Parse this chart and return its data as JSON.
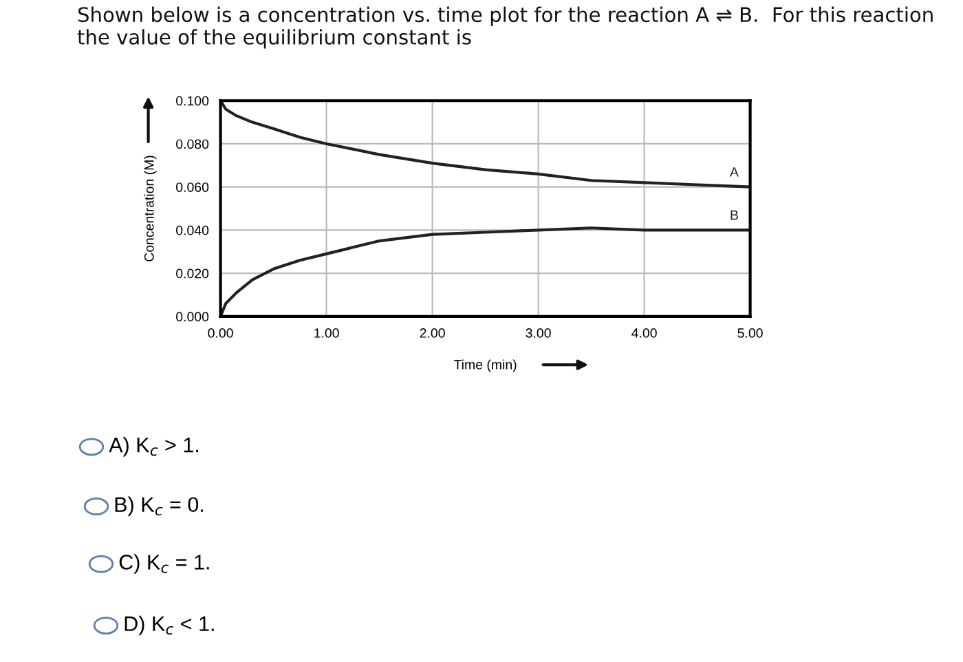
{
  "chart_data": {
    "type": "line",
    "title": "Shown below is a concentration vs. time plot for the reaction A ⇌ B.  For this reaction\nthe value of the equilibrium constant is",
    "xlabel": "Time (min)",
    "ylabel": "Concentration (M)",
    "series": [
      {
        "name": "A",
        "color": "#222222",
        "x": [
          0,
          0.05,
          0.15,
          0.3,
          0.5,
          0.75,
          1,
          1.5,
          2,
          2.5,
          3,
          3.5,
          4,
          4.5,
          5
        ],
        "values": [
          0.1,
          0.096,
          0.093,
          0.09,
          0.087,
          0.083,
          0.08,
          0.075,
          0.071,
          0.068,
          0.066,
          0.063,
          0.062,
          0.061,
          0.06
        ]
      },
      {
        "name": "B",
        "color": "#222222",
        "x": [
          0,
          0.05,
          0.15,
          0.3,
          0.5,
          0.75,
          1,
          1.5,
          2,
          2.5,
          3,
          3.5,
          4,
          4.5,
          5
        ],
        "values": [
          0,
          0.006,
          0.011,
          0.017,
          0.022,
          0.026,
          0.029,
          0.035,
          0.038,
          0.039,
          0.04,
          0.041,
          0.04,
          0.04,
          0.04
        ]
      }
    ],
    "xlim": [
      0,
      5
    ],
    "ylim": [
      0,
      0.1
    ],
    "xticks": [
      {
        "value": 0,
        "label": "0.00"
      },
      {
        "value": 1,
        "label": "1.00"
      },
      {
        "value": 2,
        "label": "2.00"
      },
      {
        "value": 3,
        "label": "3.00"
      },
      {
        "value": 4,
        "label": "4.00"
      },
      {
        "value": 5,
        "label": "5.00"
      }
    ],
    "yticks": [
      {
        "value": 0,
        "label": "0.000"
      },
      {
        "value": 0.02,
        "label": "0.020"
      },
      {
        "value": 0.04,
        "label": "0.040"
      },
      {
        "value": 0.06,
        "label": "0.060"
      },
      {
        "value": 0.08,
        "label": "0.080"
      },
      {
        "value": 0.1,
        "label": "0.100"
      }
    ],
    "grid": true,
    "legend": false,
    "marker": "none",
    "line_style": "solid",
    "annotations": [
      "A) K$_{c}$ > 1.",
      "B) K$_{c}$ = 0.",
      "C) K$_{c}$ = 1.",
      "D) K$_{c}$ < 1."
    ]
  }
}
